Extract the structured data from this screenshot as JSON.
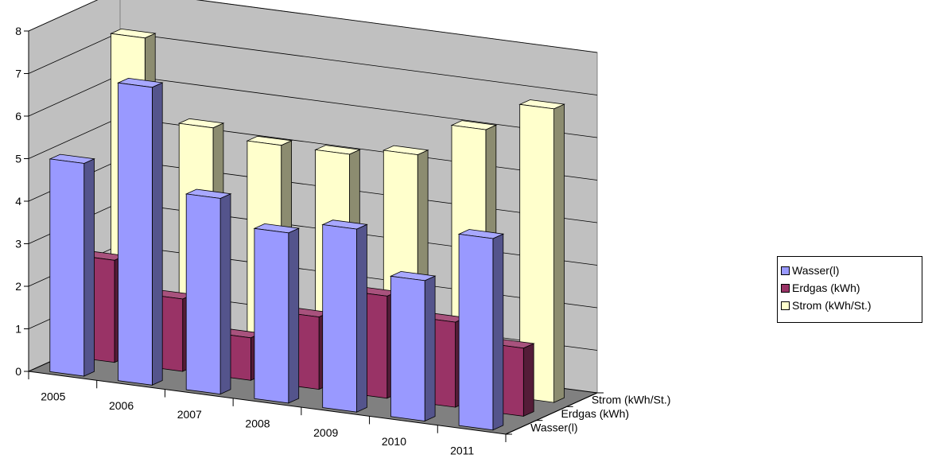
{
  "chart_data": {
    "type": "bar",
    "categories": [
      "2005",
      "2006",
      "2007",
      "2008",
      "2009",
      "2010",
      "2011"
    ],
    "series": [
      {
        "name": "Wasser(l)",
        "color": "#9999ff",
        "values": [
          5.0,
          7.0,
          4.6,
          4.0,
          4.3,
          3.3,
          4.5
        ]
      },
      {
        "name": "Erdgas (kWh)",
        "color": "#993366",
        "values": [
          2.4,
          1.7,
          1.0,
          1.7,
          2.4,
          2.0,
          1.6
        ]
      },
      {
        "name": "Strom (kWh/St.)",
        "color": "#ffffcc",
        "values": [
          7.3,
          5.4,
          5.2,
          5.2,
          5.4,
          6.2,
          6.9
        ]
      }
    ],
    "depth_labels": [
      "Wasser(l)",
      "Erdgas (kWh)",
      "Strom (kWh/St.)"
    ],
    "y_ticks": [
      "0",
      "1",
      "2",
      "3",
      "4",
      "5",
      "6",
      "7",
      "8"
    ],
    "ylim": [
      0,
      8
    ],
    "grid": true,
    "legend_position": "right",
    "wall_color": "#c0c0c0",
    "floor_color": "#808080"
  }
}
